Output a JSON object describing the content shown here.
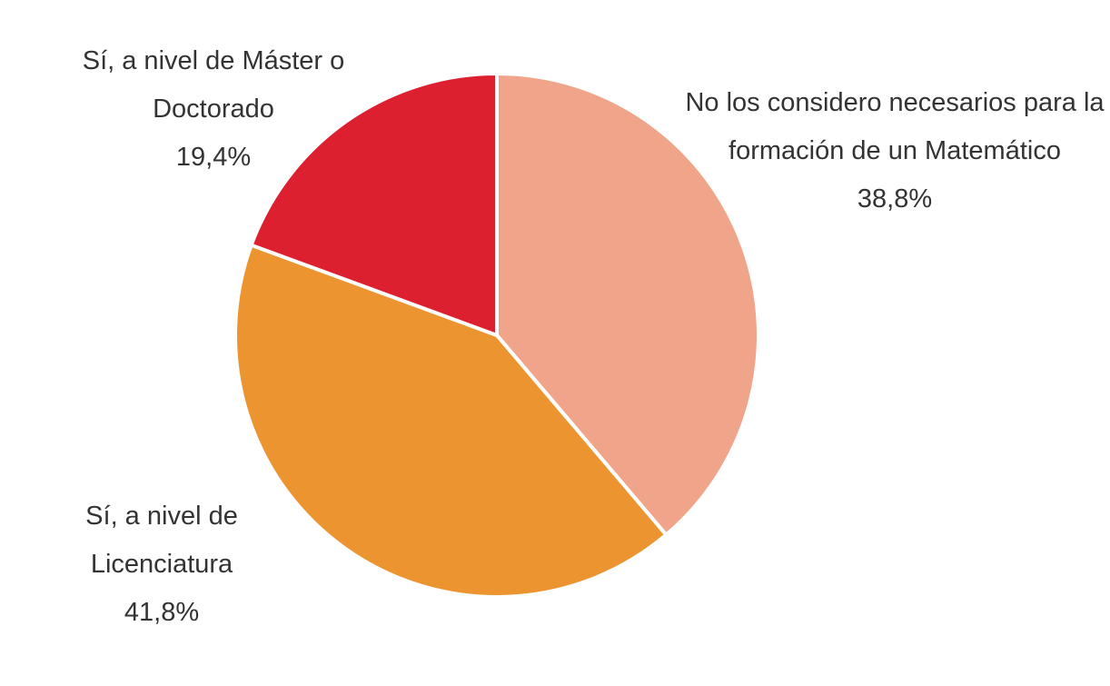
{
  "chart_data": {
    "type": "pie",
    "categories": [
      "No los considero necesarios para la formación de un Matemático",
      "Sí, a nivel de Licenciatura",
      "Sí, a nivel de Máster o Doctorado"
    ],
    "values": [
      38.8,
      41.8,
      19.4
    ],
    "value_labels": [
      "38,8%",
      "41,8%",
      "19,4%"
    ],
    "colors": [
      "#f0a58b",
      "#ec9430",
      "#dc2030"
    ]
  }
}
